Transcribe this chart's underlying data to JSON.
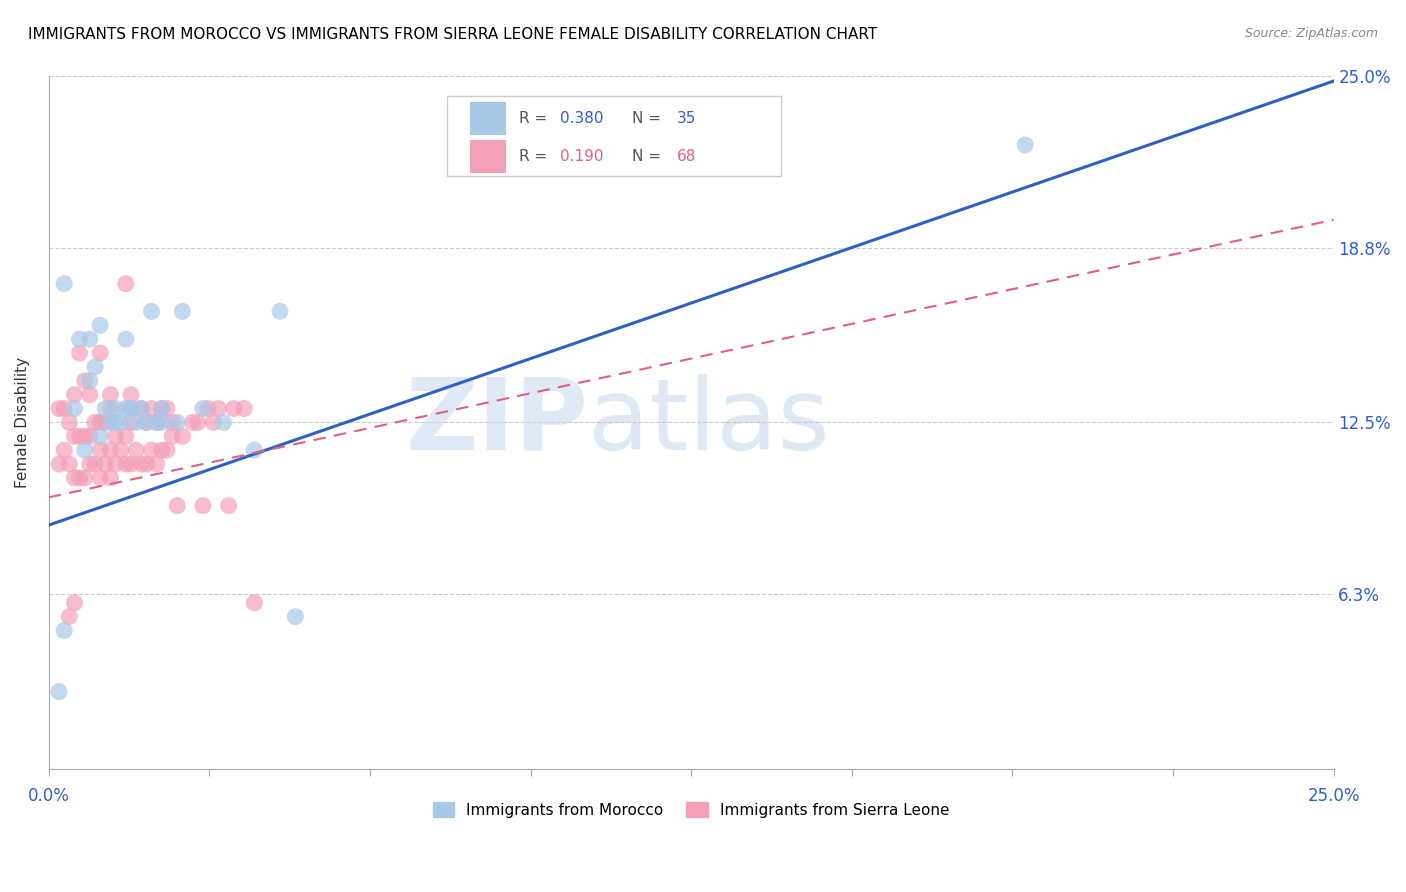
{
  "title": "IMMIGRANTS FROM MOROCCO VS IMMIGRANTS FROM SIERRA LEONE FEMALE DISABILITY CORRELATION CHART",
  "source": "Source: ZipAtlas.com",
  "ylabel": "Female Disability",
  "xlim": [
    0.0,
    0.25
  ],
  "ylim": [
    0.0,
    0.25
  ],
  "ytick_values": [
    0.063,
    0.125,
    0.188,
    0.25
  ],
  "ytick_labels": [
    "6.3%",
    "12.5%",
    "18.8%",
    "25.0%"
  ],
  "xtick_values": [
    0.0,
    0.03125,
    0.0625,
    0.09375,
    0.125,
    0.15625,
    0.1875,
    0.21875,
    0.25
  ],
  "watermark_zip": "ZIP",
  "watermark_atlas": "atlas",
  "legend_r1": "0.380",
  "legend_n1": "35",
  "legend_r2": "0.190",
  "legend_n2": "68",
  "blue_color": "#a8c8e8",
  "pink_color": "#f4a0b8",
  "blue_line_color": "#3060c0",
  "pink_line_color": "#e06080",
  "blue_line_y0": 0.088,
  "blue_line_y1": 0.248,
  "pink_line_y0": 0.098,
  "pink_line_y1": 0.198,
  "morocco_x": [
    0.002,
    0.003,
    0.005,
    0.006,
    0.007,
    0.008,
    0.008,
    0.009,
    0.01,
    0.01,
    0.011,
    0.012,
    0.013,
    0.013,
    0.014,
    0.015,
    0.015,
    0.016,
    0.016,
    0.017,
    0.018,
    0.019,
    0.02,
    0.021,
    0.022,
    0.022,
    0.025,
    0.026,
    0.03,
    0.034,
    0.04,
    0.045,
    0.048,
    0.19,
    0.003
  ],
  "morocco_y": [
    0.028,
    0.175,
    0.13,
    0.155,
    0.115,
    0.14,
    0.155,
    0.145,
    0.12,
    0.16,
    0.13,
    0.125,
    0.13,
    0.125,
    0.125,
    0.13,
    0.155,
    0.13,
    0.13,
    0.125,
    0.13,
    0.125,
    0.165,
    0.125,
    0.13,
    0.125,
    0.125,
    0.165,
    0.13,
    0.125,
    0.115,
    0.165,
    0.055,
    0.225,
    0.05
  ],
  "sierraleone_x": [
    0.002,
    0.002,
    0.003,
    0.003,
    0.004,
    0.004,
    0.005,
    0.005,
    0.005,
    0.006,
    0.006,
    0.006,
    0.007,
    0.007,
    0.007,
    0.008,
    0.008,
    0.008,
    0.009,
    0.009,
    0.01,
    0.01,
    0.01,
    0.01,
    0.011,
    0.011,
    0.012,
    0.012,
    0.012,
    0.013,
    0.013,
    0.014,
    0.015,
    0.015,
    0.015,
    0.016,
    0.016,
    0.017,
    0.018,
    0.018,
    0.019,
    0.019,
    0.02,
    0.02,
    0.021,
    0.021,
    0.022,
    0.022,
    0.023,
    0.023,
    0.024,
    0.025,
    0.026,
    0.028,
    0.029,
    0.03,
    0.031,
    0.032,
    0.033,
    0.035,
    0.036,
    0.038,
    0.04,
    0.004,
    0.005,
    0.012,
    0.016,
    0.024
  ],
  "sierraleone_y": [
    0.11,
    0.13,
    0.115,
    0.13,
    0.11,
    0.125,
    0.105,
    0.12,
    0.135,
    0.105,
    0.12,
    0.15,
    0.105,
    0.12,
    0.14,
    0.11,
    0.12,
    0.135,
    0.11,
    0.125,
    0.105,
    0.115,
    0.125,
    0.15,
    0.11,
    0.125,
    0.105,
    0.115,
    0.13,
    0.11,
    0.12,
    0.115,
    0.11,
    0.12,
    0.175,
    0.11,
    0.125,
    0.115,
    0.11,
    0.13,
    0.11,
    0.125,
    0.115,
    0.13,
    0.11,
    0.125,
    0.115,
    0.13,
    0.115,
    0.13,
    0.12,
    0.095,
    0.12,
    0.125,
    0.125,
    0.095,
    0.13,
    0.125,
    0.13,
    0.095,
    0.13,
    0.13,
    0.06,
    0.055,
    0.06,
    0.135,
    0.135,
    0.125
  ]
}
